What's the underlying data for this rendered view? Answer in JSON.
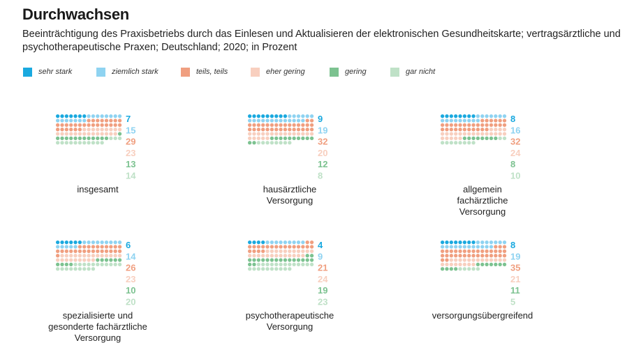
{
  "page": {
    "title": "Durchwachsen",
    "subtitle": "Beeinträchtigung des Praxisbetriebs durch das Einlesen und Aktualisieren der elektronischen Gesundheitskarte; vertragsärztliche und psychotherapeutische Praxen; Deutschland; 2020; in Prozent"
  },
  "legend": [
    {
      "label": "sehr stark",
      "color": "#1aa9df"
    },
    {
      "label": "ziemlich stark",
      "color": "#8fd3f1"
    },
    {
      "label": "teils, teils",
      "color": "#f09f80"
    },
    {
      "label": "eher gering",
      "color": "#f8cfbf"
    },
    {
      "label": "gering",
      "color": "#7cc290"
    },
    {
      "label": "gar nicht",
      "color": "#bfe1c7"
    }
  ],
  "chart_data": {
    "type": "waffle",
    "categories": [
      "sehr stark",
      "ziemlich stark",
      "teils, teils",
      "eher gering",
      "gering",
      "gar nicht"
    ],
    "colors": [
      "#1aa9df",
      "#8fd3f1",
      "#f09f80",
      "#f8cfbf",
      "#7cc290",
      "#bfe1c7"
    ],
    "panels": [
      {
        "label": "insgesamt",
        "values": [
          7,
          15,
          29,
          23,
          13,
          14
        ]
      },
      {
        "label": "hausärztliche\nVersorgung",
        "values": [
          9,
          19,
          32,
          20,
          12,
          8
        ]
      },
      {
        "label": "allgemein\nfachärztliche\nVersorgung",
        "values": [
          8,
          16,
          32,
          24,
          8,
          10
        ]
      },
      {
        "label": "spezialisierte und\ngesonderte fachärztliche\nVersorgung",
        "values": [
          6,
          14,
          26,
          23,
          10,
          20
        ]
      },
      {
        "label": "psychotherapeutische\nVersorgung",
        "values": [
          4,
          9,
          21,
          24,
          19,
          23
        ]
      },
      {
        "label": "versorgungsübergreifend",
        "values": [
          8,
          19,
          35,
          21,
          11,
          5
        ]
      }
    ]
  }
}
